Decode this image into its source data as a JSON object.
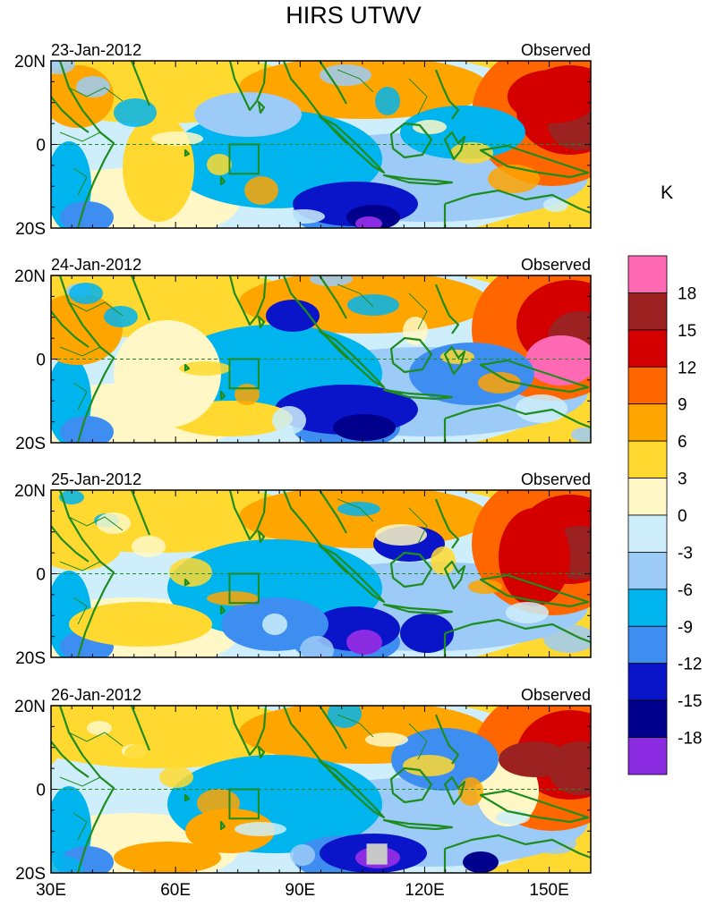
{
  "chart_data": {
    "type": "heatmap",
    "title": "HIRS UTWV",
    "colorbar_unit": "K",
    "panel_right_label": "Observed",
    "panels": [
      {
        "date": "23-Jan-2012"
      },
      {
        "date": "24-Jan-2012"
      },
      {
        "date": "25-Jan-2012"
      },
      {
        "date": "26-Jan-2012"
      }
    ],
    "x_ticks": [
      "30E",
      "60E",
      "90E",
      "120E",
      "150E"
    ],
    "x_tick_values": [
      30,
      60,
      90,
      120,
      150
    ],
    "xlim": [
      30,
      160
    ],
    "y_ticks": [
      "20N",
      "0",
      "20S"
    ],
    "y_tick_values": [
      20,
      0,
      -20
    ],
    "ylim": [
      -20,
      20
    ],
    "colorbar_levels": [
      "18",
      "15",
      "12",
      "9",
      "6",
      "3",
      "0",
      "-3",
      "-6",
      "-9",
      "-12",
      "-15",
      "-18"
    ],
    "colorbar_colors": [
      "#ff69b4",
      "#9c2222",
      "#d40000",
      "#ff6600",
      "#ffa500",
      "#ffd92f",
      "#fff8c6",
      "#cdeefa",
      "#9ccbf8",
      "#00b4ee",
      "#3d8ef0",
      "#0a14c8",
      "#00008c",
      "#8b2be2"
    ],
    "box_region": {
      "lon": [
        73,
        80
      ],
      "lat": [
        -7,
        0
      ]
    }
  }
}
